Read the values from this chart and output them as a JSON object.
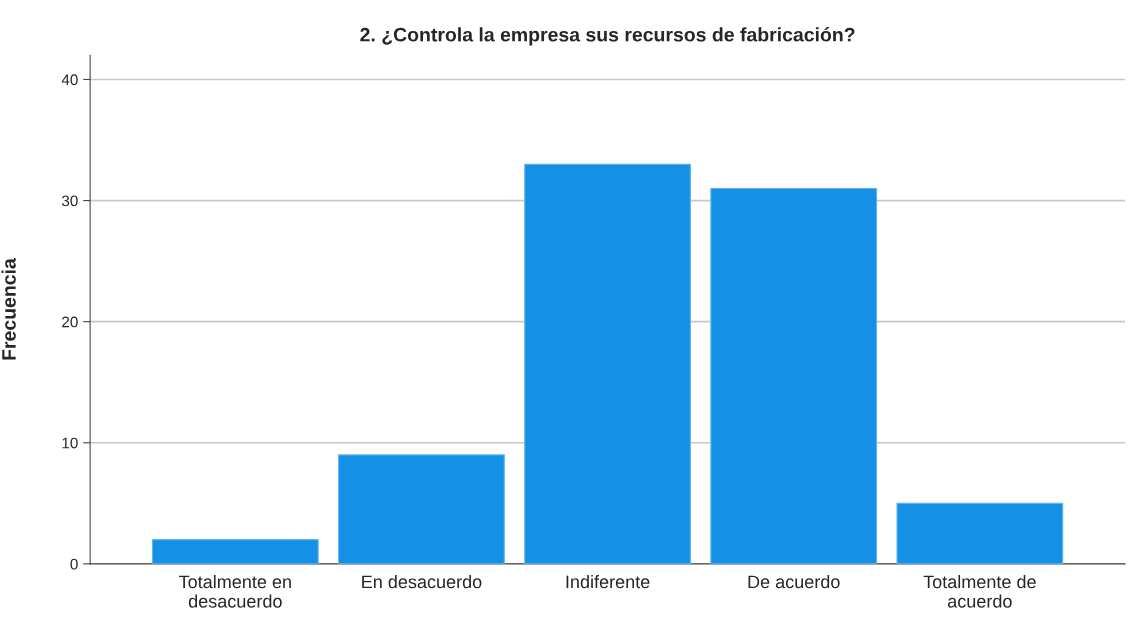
{
  "chart_data": {
    "type": "bar",
    "title": "2. ¿Controla la empresa sus recursos de fabricación?",
    "ylabel": "Frecuencia",
    "categories": [
      "Totalmente en\ndesacuerdo",
      "En desacuerdo",
      "Indiferente",
      "De acuerdo",
      "Totalmente de\nacuerdo"
    ],
    "values": [
      2,
      9,
      33,
      31,
      5
    ],
    "color": "#1491e6",
    "ylim": [
      0,
      42
    ],
    "yticks": [
      0,
      10,
      20,
      30,
      40
    ],
    "grid": "y"
  }
}
